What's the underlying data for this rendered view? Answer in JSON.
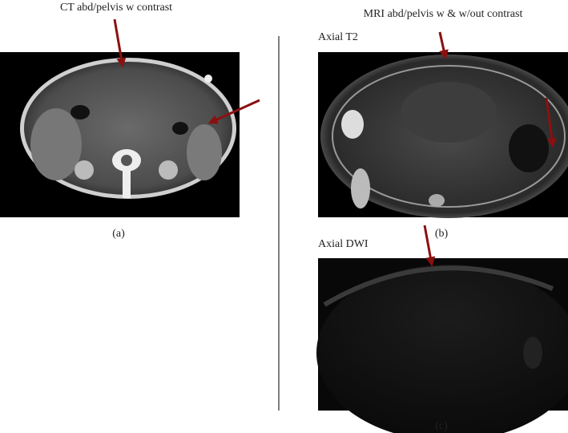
{
  "ct": {
    "title": "CT abd/pelvis w contrast",
    "caption": "(a)"
  },
  "mri": {
    "title": "MRI abd/pelvis w & w/out contrast",
    "t2": {
      "label": "Axial T2",
      "caption": "(b)"
    },
    "dwi": {
      "label": "Axial DWI",
      "caption": "(c)"
    }
  }
}
